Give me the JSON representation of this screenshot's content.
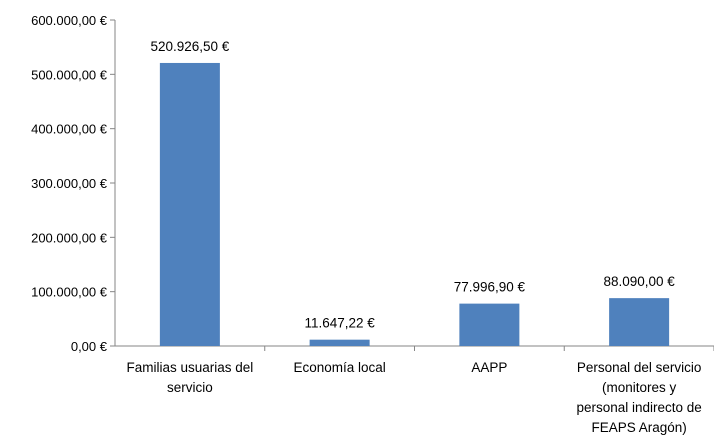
{
  "chart_data": {
    "type": "bar",
    "categories": [
      [
        "Familias usuarias del",
        "servicio"
      ],
      [
        "Economía local"
      ],
      [
        "AAPP"
      ],
      [
        "Personal del servicio",
        "(monitores y",
        "personal indirecto de",
        "FEAPS Aragón)"
      ]
    ],
    "values": [
      520926.5,
      11647.22,
      77996.9,
      88090.0
    ],
    "data_labels": [
      "520.926,50 €",
      "11.647,22 €",
      "77.996,90 €",
      "88.090,00 €"
    ],
    "y_ticks": [
      {
        "value": 0,
        "label": "0,00 €"
      },
      {
        "value": 100000,
        "label": "100.000,00 €"
      },
      {
        "value": 200000,
        "label": "200.000,00 €"
      },
      {
        "value": 300000,
        "label": "300.000,00 €"
      },
      {
        "value": 400000,
        "label": "400.000,00 €"
      },
      {
        "value": 500000,
        "label": "500.000,00 €"
      },
      {
        "value": 600000,
        "label": "600.000,00 €"
      }
    ],
    "ylim": [
      0,
      600000
    ],
    "grid": false,
    "legend": "none",
    "bar_color": "#4F81BD",
    "title": "",
    "xlabel": "",
    "ylabel": ""
  }
}
